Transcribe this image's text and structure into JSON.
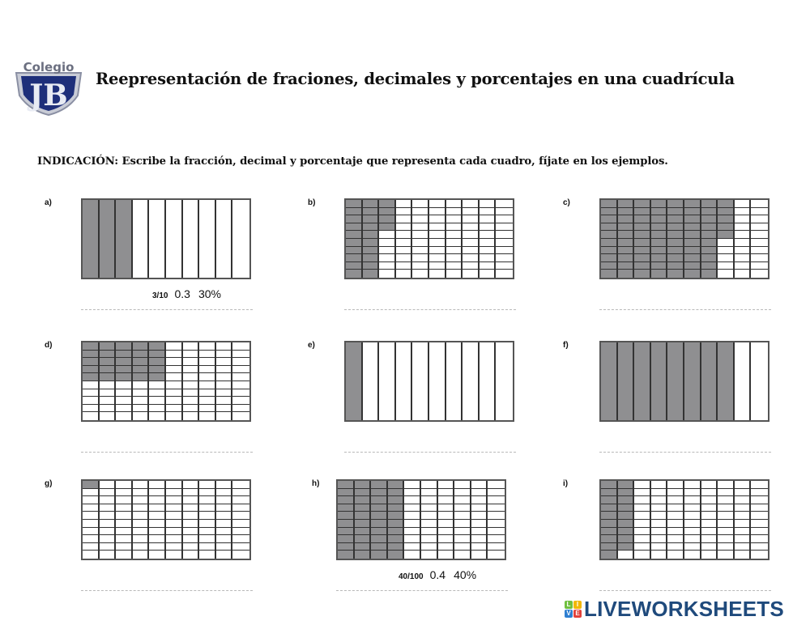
{
  "header": {
    "logo_text": "Colegio",
    "logo_initials": "JB",
    "title": "Reepresentación de fraciones, decimales y porcentajes en una cuadrícula"
  },
  "instruction": "INDICACIÓN: Escribe la fracción, decimal y porcentaje que representa cada cuadro, fíjate en los ejemplos.",
  "items": [
    {
      "label": "a)",
      "type": "strips",
      "shaded": 3,
      "total": 10,
      "example": {
        "fraction": "3/10",
        "decimal": "0.3",
        "percent": "30%"
      }
    },
    {
      "label": "b)",
      "type": "cells",
      "shaded": 24,
      "total": 100
    },
    {
      "label": "c)",
      "type": "cells",
      "shaded": 75,
      "total": 100
    },
    {
      "label": "d)",
      "type": "cells",
      "shaded": 25,
      "total": 100
    },
    {
      "label": "e)",
      "type": "strips",
      "shaded": 1,
      "total": 10
    },
    {
      "label": "f)",
      "type": "strips",
      "shaded": 8,
      "total": 10
    },
    {
      "label": "g)",
      "type": "cells",
      "shaded": 1,
      "total": 100
    },
    {
      "label": "h)",
      "type": "cells",
      "shaded": 40,
      "total": 100,
      "example": {
        "fraction": "40/100",
        "decimal": "0.4",
        "percent": "40%"
      }
    },
    {
      "label": "i)",
      "type": "cells",
      "shaded": 19,
      "total": 100
    }
  ],
  "footer": {
    "brand_blocks": [
      "L",
      "I",
      "V",
      "E"
    ],
    "brand_colors": [
      "#6fbf3f",
      "#f2b705",
      "#2f7fd1",
      "#e2413b"
    ],
    "brand_text": "LIVEWORKSHEETS",
    "brand_color": "#1f4a7c"
  },
  "colors": {
    "shaded": "#8f8f91",
    "grid_line": "#333333",
    "answer_line": "#b9b9b9"
  }
}
